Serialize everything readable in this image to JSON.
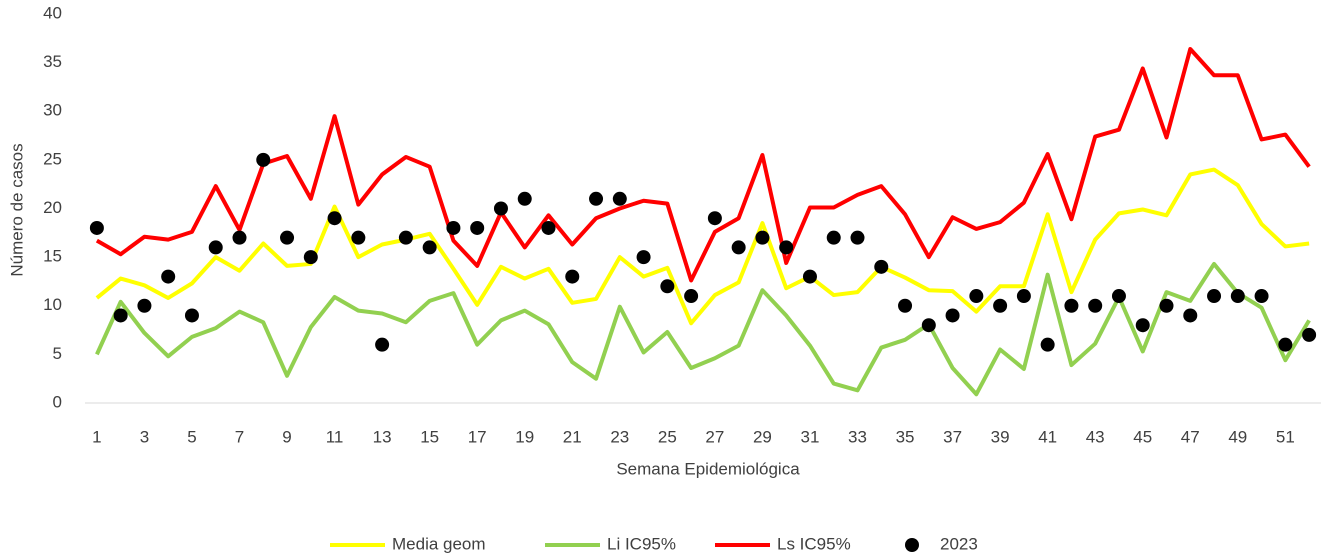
{
  "chart_data": {
    "type": "line",
    "x_label": "Semana Epidemiológica",
    "y_label": "Número de casos",
    "x": [
      1,
      2,
      3,
      4,
      5,
      6,
      7,
      8,
      9,
      10,
      11,
      12,
      13,
      14,
      15,
      16,
      17,
      18,
      19,
      20,
      21,
      22,
      23,
      24,
      25,
      26,
      27,
      28,
      29,
      30,
      31,
      32,
      33,
      34,
      35,
      36,
      37,
      38,
      39,
      40,
      41,
      42,
      43,
      44,
      45,
      46,
      47,
      48,
      49,
      50,
      51,
      52
    ],
    "xlim": [
      0.5,
      52.5
    ],
    "xticks": [
      1,
      3,
      5,
      7,
      9,
      11,
      13,
      15,
      17,
      19,
      21,
      23,
      25,
      27,
      29,
      31,
      33,
      35,
      37,
      39,
      41,
      43,
      45,
      47,
      49,
      51
    ],
    "ylim": [
      0,
      40
    ],
    "yticks": [
      0,
      5,
      10,
      15,
      20,
      25,
      30,
      35,
      40
    ],
    "grid": false,
    "legend": "bottom",
    "series": [
      {
        "name": "Media geom",
        "type": "line",
        "color": "#ffff00",
        "values": [
          10.8,
          12.8,
          12.1,
          10.8,
          12.3,
          15,
          13.6,
          16.4,
          14.1,
          14.3,
          20.2,
          15,
          16.3,
          16.8,
          17.4,
          13.8,
          10.1,
          14,
          12.8,
          13.8,
          10.3,
          10.7,
          15,
          13,
          13.9,
          8.2,
          11.1,
          12.4,
          18.5,
          11.8,
          13,
          11.1,
          11.4,
          14,
          12.9,
          11.6,
          11.5,
          9.4,
          12,
          12,
          19.4,
          11.4,
          16.8,
          19.5,
          19.9,
          19.3,
          23.5,
          24,
          22.4,
          18.4,
          16.1,
          16.4
        ]
      },
      {
        "name": "Li IC95%",
        "type": "line",
        "color": "#92d050",
        "values": [
          5,
          10.4,
          7.2,
          4.8,
          6.8,
          7.7,
          9.4,
          8.3,
          2.8,
          7.8,
          10.9,
          9.5,
          9.2,
          8.3,
          10.5,
          11.3,
          6,
          8.5,
          9.5,
          8.1,
          4.2,
          2.5,
          9.9,
          5.2,
          7.3,
          3.6,
          4.6,
          5.9,
          11.6,
          9,
          5.9,
          2,
          1.3,
          5.7,
          6.5,
          8.1,
          3.6,
          0.9,
          5.5,
          3.5,
          13.2,
          3.9,
          6.1,
          10.9,
          5.3,
          11.4,
          10.5,
          14.3,
          11.3,
          9.8,
          4.4,
          8.5
        ]
      },
      {
        "name": "Ls IC95%",
        "type": "line",
        "color": "#ff0000",
        "values": [
          16.7,
          15.3,
          17.1,
          16.8,
          17.6,
          22.3,
          17.8,
          24.6,
          25.4,
          21,
          29.5,
          20.4,
          23.5,
          25.3,
          24.3,
          16.7,
          14.1,
          19.6,
          16,
          19.3,
          16.3,
          19,
          20,
          20.8,
          20.5,
          12.6,
          17.6,
          19,
          25.5,
          14.4,
          20.1,
          20.1,
          21.4,
          22.3,
          19.4,
          15,
          19.1,
          17.9,
          18.6,
          20.6,
          25.6,
          18.9,
          27.4,
          28.1,
          34.4,
          27.3,
          36.4,
          33.7,
          33.7,
          27.1,
          27.6,
          24.3
        ]
      },
      {
        "name": "2023",
        "type": "scatter",
        "color": "#000000",
        "values": [
          18,
          9,
          10,
          13,
          9,
          16,
          17,
          25,
          17,
          15,
          19,
          17,
          6,
          17,
          16,
          18,
          18,
          20,
          21,
          18,
          13,
          21,
          21,
          15,
          12,
          11,
          19,
          16,
          17,
          16,
          13,
          17,
          17,
          14,
          10,
          8,
          9,
          11,
          10,
          11,
          6,
          10,
          10,
          11,
          8,
          10,
          9,
          11,
          11,
          11,
          6,
          7
        ]
      }
    ]
  }
}
